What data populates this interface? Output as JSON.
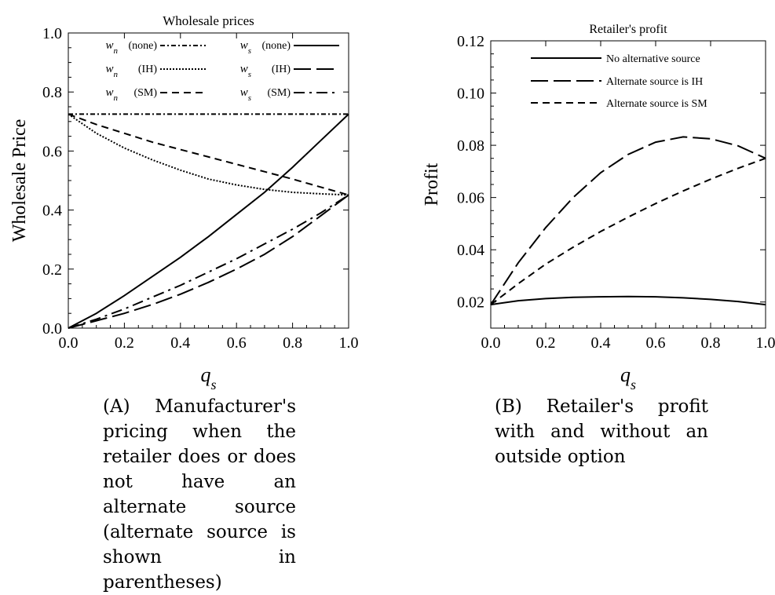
{
  "chart_data": [
    {
      "type": "line",
      "title": "Wholesale prices",
      "xlabel": "q_s",
      "ylabel": "Wholesale Price",
      "xlim": [
        0,
        1
      ],
      "ylim": [
        0,
        1
      ],
      "xticks": [
        "0.0",
        "0.2",
        "0.4",
        "0.6",
        "0.8",
        "1.0"
      ],
      "yticks": [
        "0.0",
        "0.2",
        "0.4",
        "0.6",
        "0.8",
        "1.0"
      ],
      "legend_position": "top",
      "grid": false,
      "series": [
        {
          "name": "w_n (none)",
          "var": "w",
          "sub": "n",
          "alt": "(none)",
          "dash": "dashdot",
          "x": [
            0,
            1
          ],
          "y": [
            0.725,
            0.725
          ]
        },
        {
          "name": "w_n (IH)",
          "var": "w",
          "sub": "n",
          "alt": "(IH)",
          "dash": "dotted",
          "x": [
            0,
            0.1,
            0.2,
            0.3,
            0.4,
            0.5,
            0.6,
            0.7,
            0.8,
            0.9,
            1.0
          ],
          "y": [
            0.725,
            0.66,
            0.61,
            0.57,
            0.535,
            0.505,
            0.485,
            0.47,
            0.46,
            0.455,
            0.451
          ]
        },
        {
          "name": "w_n (SM)",
          "var": "w",
          "sub": "n",
          "alt": "(SM)",
          "dash": "dashed",
          "x": [
            0,
            0.1,
            0.2,
            0.3,
            0.4,
            0.5,
            0.6,
            0.7,
            0.8,
            0.9,
            1.0
          ],
          "y": [
            0.725,
            0.69,
            0.66,
            0.63,
            0.605,
            0.58,
            0.555,
            0.53,
            0.505,
            0.478,
            0.451
          ]
        },
        {
          "name": "w_s (none)",
          "var": "w",
          "sub": "s",
          "alt": "(none)",
          "dash": "solid",
          "x": [
            0,
            0.1,
            0.2,
            0.3,
            0.4,
            0.5,
            0.6,
            0.7,
            0.8,
            0.9,
            1.0
          ],
          "y": [
            0.0,
            0.05,
            0.11,
            0.175,
            0.24,
            0.31,
            0.385,
            0.46,
            0.545,
            0.635,
            0.725
          ]
        },
        {
          "name": "w_s (IH)",
          "var": "w",
          "sub": "s",
          "alt": "(IH)",
          "dash": "longdash",
          "x": [
            0,
            0.1,
            0.2,
            0.3,
            0.4,
            0.5,
            0.6,
            0.7,
            0.8,
            0.9,
            1.0
          ],
          "y": [
            0.0,
            0.025,
            0.05,
            0.08,
            0.115,
            0.155,
            0.2,
            0.25,
            0.31,
            0.38,
            0.451
          ]
        },
        {
          "name": "w_s (SM)",
          "var": "w",
          "sub": "s",
          "alt": "(SM)",
          "dash": "dashdot2",
          "x": [
            0,
            0.1,
            0.2,
            0.3,
            0.4,
            0.5,
            0.6,
            0.7,
            0.8,
            0.9,
            1.0
          ],
          "y": [
            0.0,
            0.03,
            0.065,
            0.105,
            0.145,
            0.19,
            0.235,
            0.285,
            0.335,
            0.39,
            0.451
          ]
        }
      ]
    },
    {
      "type": "line",
      "title": "Retailer's profit",
      "xlabel": "q_s",
      "ylabel": "Profit",
      "xlim": [
        0,
        1
      ],
      "ylim": [
        0.01,
        0.12
      ],
      "xticks": [
        "0.0",
        "0.2",
        "0.4",
        "0.6",
        "0.8",
        "1.0"
      ],
      "yticks": [
        "0.02",
        "0.04",
        "0.06",
        "0.08",
        "0.10",
        "0.12"
      ],
      "legend_position": "top",
      "grid": false,
      "series": [
        {
          "name": "No alternative source",
          "dash": "solid",
          "x": [
            0,
            0.1,
            0.2,
            0.3,
            0.4,
            0.5,
            0.6,
            0.7,
            0.8,
            0.9,
            1.0
          ],
          "y": [
            0.019,
            0.0205,
            0.0213,
            0.0218,
            0.022,
            0.0221,
            0.022,
            0.0216,
            0.021,
            0.0202,
            0.019
          ]
        },
        {
          "name": "Alternate source is IH",
          "dash": "longdash",
          "x": [
            0,
            0.1,
            0.2,
            0.3,
            0.4,
            0.5,
            0.6,
            0.7,
            0.8,
            0.9,
            1.0
          ],
          "y": [
            0.019,
            0.035,
            0.0485,
            0.06,
            0.0695,
            0.0765,
            0.0812,
            0.0832,
            0.0825,
            0.0798,
            0.075
          ]
        },
        {
          "name": "Alternate source is SM",
          "dash": "dashed",
          "x": [
            0,
            0.1,
            0.2,
            0.3,
            0.4,
            0.5,
            0.6,
            0.7,
            0.8,
            0.9,
            1.0
          ],
          "y": [
            0.019,
            0.027,
            0.0345,
            0.041,
            0.047,
            0.0525,
            0.0577,
            0.0625,
            0.067,
            0.0712,
            0.075
          ]
        }
      ]
    }
  ],
  "captions": {
    "a_tag": "(A)",
    "a_text": "Manufacturer's pricing when the retailer does or does not have an alternate source (alternate source is shown in parentheses)",
    "b_tag": "(B)",
    "b_text": "Retailer's profit with and without an outside option"
  }
}
